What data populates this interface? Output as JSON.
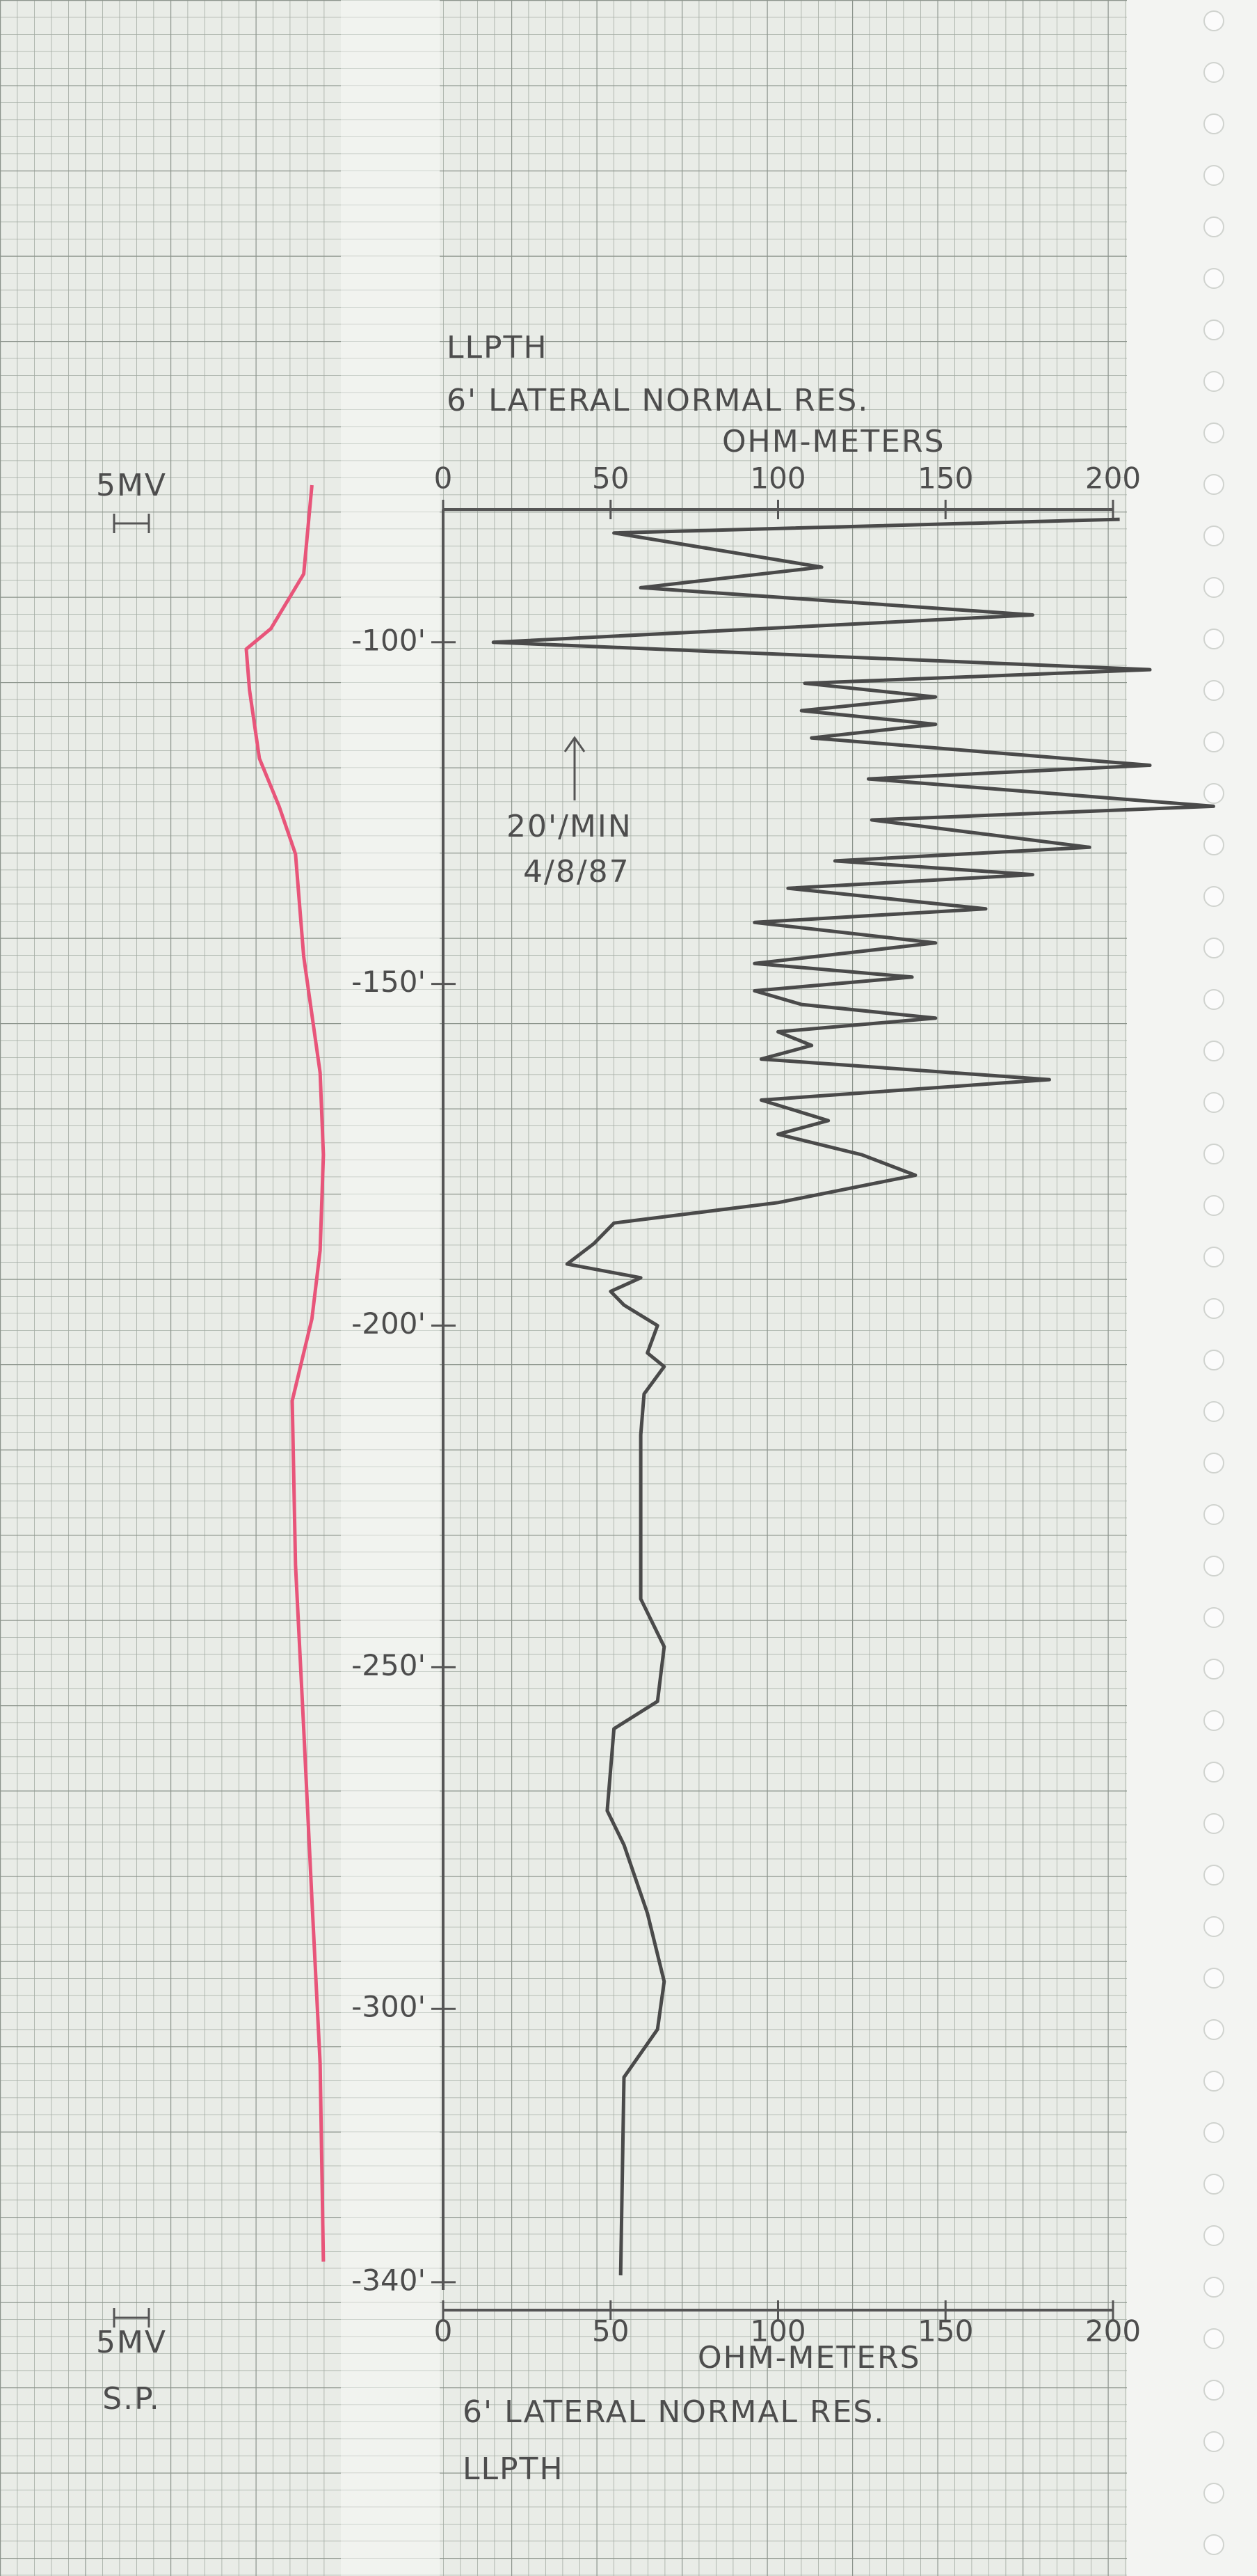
{
  "chart_data": {
    "type": "well-log",
    "header": "LLPTH",
    "title": "6' LATERAL NORMAL RES.",
    "x_label": "OHM-METERS",
    "sp_scale": "5MV",
    "sp_label": "S.P.",
    "annotations": [
      "20'/MIN",
      "4/8/87"
    ],
    "xlim": [
      0,
      200
    ],
    "xticks": [
      0,
      50,
      100,
      150,
      200
    ],
    "ylim": [
      6,
      383
    ],
    "yticks": [
      {
        "value": 100,
        "label": "-100'"
      },
      {
        "value": 150,
        "label": "-150'"
      },
      {
        "value": 200,
        "label": "-200'"
      },
      {
        "value": 250,
        "label": "-250'"
      },
      {
        "value": 300,
        "label": "-300'"
      },
      {
        "value": 340,
        "label": "-340'"
      }
    ],
    "series": [
      {
        "color": "#4a4a4a",
        "depth": [
          82,
          84,
          89,
          92,
          96,
          100,
          104,
          106,
          108,
          110,
          112,
          114,
          118,
          120,
          124,
          126,
          130,
          132,
          134,
          136,
          139,
          141,
          144,
          147,
          149,
          151,
          153,
          155,
          157,
          159,
          161,
          164,
          167,
          170,
          172,
          175,
          178,
          182,
          185,
          188,
          191,
          193,
          195,
          197,
          200,
          204,
          206,
          210,
          216,
          240,
          247,
          255,
          259,
          271,
          276,
          286,
          296,
          303,
          310,
          339
        ],
        "values": [
          202,
          51,
          113,
          59,
          176,
          15,
          211,
          108,
          147,
          107,
          147,
          110,
          211,
          127,
          230,
          128,
          193,
          117,
          176,
          103,
          162,
          93,
          147,
          93,
          140,
          93,
          107,
          147,
          100,
          110,
          95,
          181,
          95,
          115,
          100,
          125,
          141,
          100,
          51,
          45,
          37,
          59,
          50,
          54,
          64,
          61,
          66,
          60,
          59,
          59,
          66,
          64,
          51,
          49,
          54,
          61,
          66,
          64,
          54,
          53
        ]
      },
      {
        "color": "#e8557a",
        "axis": "sp",
        "depth": [
          77,
          90,
          98,
          101,
          107,
          117,
          124,
          131,
          146,
          163,
          175,
          189,
          199,
          211,
          235,
          259,
          284,
          308,
          337
        ],
        "values": [
          20,
          17.5,
          7.5,
          0,
          1,
          4,
          10,
          15,
          17.5,
          22.5,
          23.5,
          22.5,
          20,
          14,
          15,
          17.5,
          20,
          22.5,
          23.5
        ]
      }
    ]
  }
}
